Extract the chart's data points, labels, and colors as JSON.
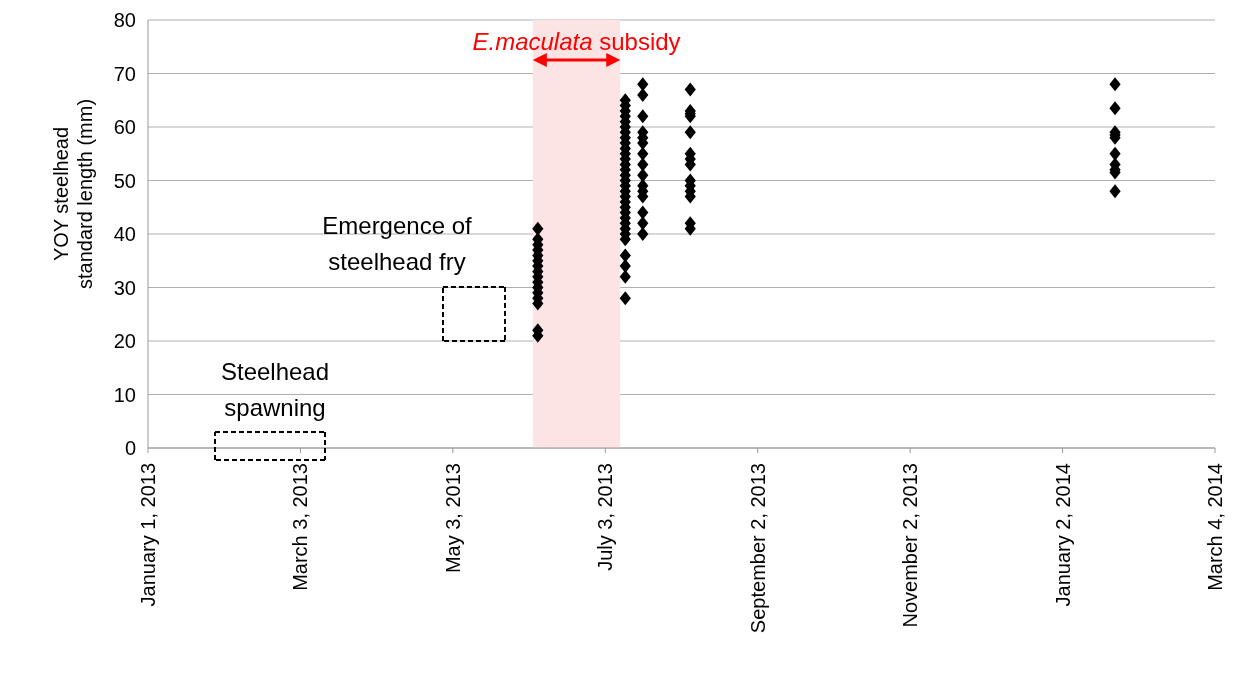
{
  "chart_data": {
    "type": "scatter",
    "ylabel": "YOY steelhead standard length (mm)",
    "xlim": [
      "2013-01-01",
      "2014-03-04"
    ],
    "xticks": [
      {
        "value": "2013-01-01",
        "label": "January 1, 2013"
      },
      {
        "value": "2013-03-03",
        "label": "March 3, 2013"
      },
      {
        "value": "2013-05-03",
        "label": "May 3, 2013"
      },
      {
        "value": "2013-07-03",
        "label": "July 3, 2013"
      },
      {
        "value": "2013-09-02",
        "label": "September 2, 2013"
      },
      {
        "value": "2013-11-02",
        "label": "November 2, 2013"
      },
      {
        "value": "2014-01-02",
        "label": "January 2, 2014"
      },
      {
        "value": "2014-03-04",
        "label": "March 4, 2014"
      }
    ],
    "ylim": [
      0,
      80
    ],
    "yticks": [
      0,
      10,
      20,
      30,
      40,
      50,
      60,
      70,
      80
    ],
    "grid": "y",
    "marker": "diamond",
    "series": [
      {
        "color": "#000000",
        "x": [
          "2013-06-06",
          "2013-06-06",
          "2013-06-06",
          "2013-06-06",
          "2013-06-06",
          "2013-06-06",
          "2013-06-06",
          "2013-06-06",
          "2013-06-06",
          "2013-06-06",
          "2013-06-06",
          "2013-06-06",
          "2013-06-06",
          "2013-06-06",
          "2013-06-06",
          "2013-06-06",
          "2013-07-11",
          "2013-07-11",
          "2013-07-11",
          "2013-07-11",
          "2013-07-11",
          "2013-07-11",
          "2013-07-11",
          "2013-07-11",
          "2013-07-11",
          "2013-07-11",
          "2013-07-11",
          "2013-07-11",
          "2013-07-11",
          "2013-07-11",
          "2013-07-11",
          "2013-07-11",
          "2013-07-11",
          "2013-07-11",
          "2013-07-11",
          "2013-07-11",
          "2013-07-11",
          "2013-07-11",
          "2013-07-11",
          "2013-07-11",
          "2013-07-11",
          "2013-07-11",
          "2013-07-11",
          "2013-07-11",
          "2013-07-11",
          "2013-07-11",
          "2013-07-11",
          "2013-07-18",
          "2013-07-18",
          "2013-07-18",
          "2013-07-18",
          "2013-07-18",
          "2013-07-18",
          "2013-07-18",
          "2013-07-18",
          "2013-07-18",
          "2013-07-18",
          "2013-07-18",
          "2013-07-18",
          "2013-07-18",
          "2013-07-18",
          "2013-07-18",
          "2013-08-06",
          "2013-08-06",
          "2013-08-06",
          "2013-08-06",
          "2013-08-06",
          "2013-08-06",
          "2013-08-06",
          "2013-08-06",
          "2013-08-06",
          "2013-08-06",
          "2013-08-06",
          "2013-08-06",
          "2013-08-06",
          "2013-08-06",
          "2014-01-23",
          "2014-01-23",
          "2014-01-23",
          "2014-01-23",
          "2014-01-23",
          "2014-01-23",
          "2014-01-23",
          "2014-01-23",
          "2014-01-23",
          "2014-01-23"
        ],
        "values": [
          41,
          39,
          38,
          37,
          36,
          35,
          34,
          33,
          32,
          31,
          30,
          29,
          28,
          27,
          22,
          21,
          65,
          64,
          63,
          62,
          61,
          60,
          59,
          58,
          57,
          56,
          55,
          54,
          53,
          52,
          51,
          50,
          49,
          48,
          47,
          46,
          45,
          44,
          43,
          42,
          41,
          40,
          39,
          36,
          34,
          32,
          28,
          68,
          66,
          62,
          59,
          58,
          57,
          55,
          53,
          51,
          49,
          48,
          47,
          44,
          42,
          40,
          67,
          63,
          62.5,
          62,
          59,
          55,
          54,
          53,
          50,
          49,
          48,
          47,
          42,
          41,
          68,
          63.5,
          59,
          58.5,
          58,
          55,
          53,
          52,
          51.5,
          48
        ]
      }
    ],
    "bands": [
      {
        "axis": "x",
        "from": "2013-06-04",
        "to": "2013-07-09",
        "label": "E.maculata subsidy",
        "color": "#fde4e4"
      }
    ],
    "annotations": [
      "Steelhead spawning",
      "Emergence of steelhead fry"
    ]
  }
}
